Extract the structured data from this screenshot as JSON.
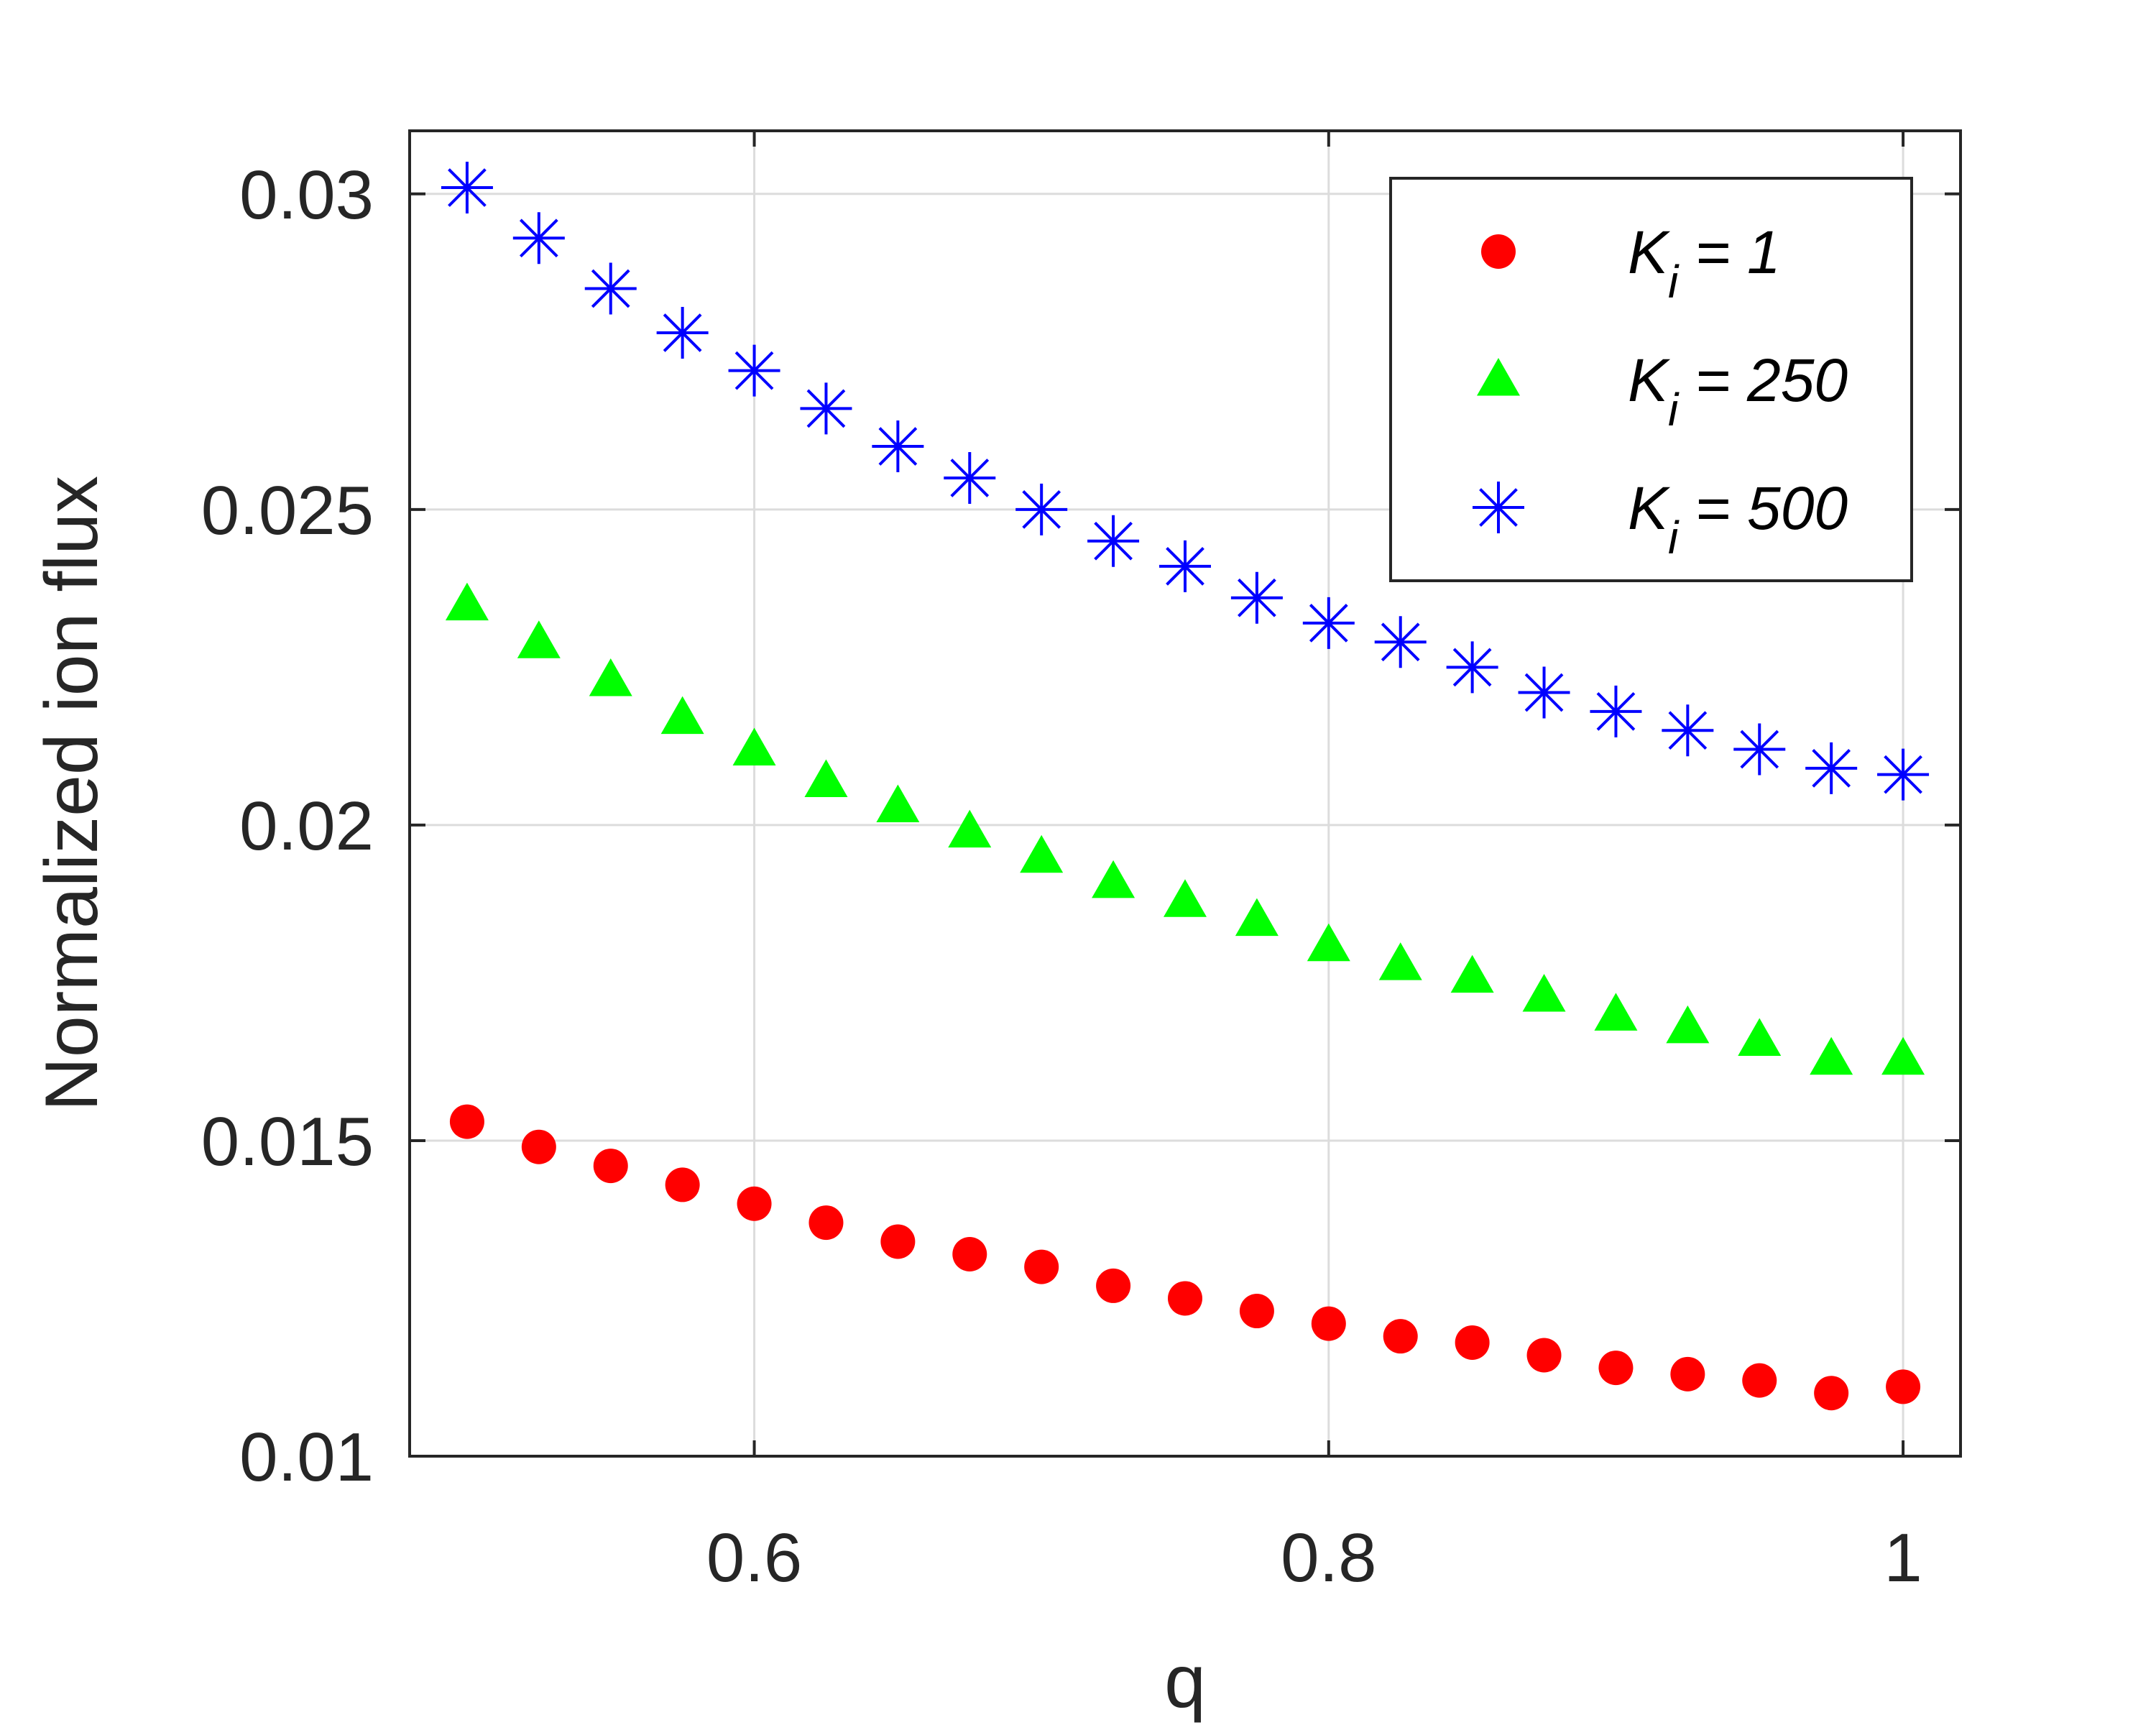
{
  "chart_data": {
    "type": "scatter",
    "xlabel": "q",
    "ylabel": "Normalized ion flux",
    "xlim": [
      0.5,
      1.0
    ],
    "ylim": [
      0.01,
      0.031
    ],
    "xticks": [
      0.6,
      0.8,
      1.0
    ],
    "xtick_labels": [
      "0.6",
      "0.8",
      "1"
    ],
    "yticks": [
      0.01,
      0.015,
      0.02,
      0.025,
      0.03
    ],
    "ytick_labels": [
      "0.01",
      "0.015",
      "0.02",
      "0.025",
      "0.03"
    ],
    "grid": true,
    "legend_position": "top-right",
    "x": [
      0.5,
      0.525,
      0.55,
      0.575,
      0.6,
      0.625,
      0.65,
      0.675,
      0.7,
      0.725,
      0.75,
      0.775,
      0.8,
      0.825,
      0.85,
      0.875,
      0.9,
      0.925,
      0.95,
      0.975,
      1.0
    ],
    "series": [
      {
        "name": "K_i = 1",
        "legend_main": "K",
        "legend_sub": "i",
        "legend_rest": " = 1",
        "marker": "circle",
        "color": "#ff0000",
        "values": [
          0.0153,
          0.0149,
          0.0146,
          0.0143,
          0.014,
          0.0137,
          0.0134,
          0.0132,
          0.013,
          0.0127,
          0.0125,
          0.0123,
          0.0121,
          0.0119,
          0.0118,
          0.0116,
          0.0114,
          0.0113,
          0.0112,
          0.011,
          0.0111
        ]
      },
      {
        "name": "K_i = 250",
        "legend_main": "K",
        "legend_sub": "i",
        "legend_rest": " = 250",
        "marker": "triangle",
        "color": "#00ff00",
        "values": [
          0.0235,
          0.0229,
          0.0223,
          0.0217,
          0.0212,
          0.0207,
          0.0203,
          0.0199,
          0.0195,
          0.0191,
          0.0188,
          0.0185,
          0.0181,
          0.0178,
          0.0176,
          0.0173,
          0.017,
          0.0168,
          0.0166,
          0.0163,
          0.0163
        ]
      },
      {
        "name": "K_i = 500",
        "legend_main": "K",
        "legend_sub": "i",
        "legend_rest": " = 500",
        "marker": "asterisk",
        "color": "#0000ff",
        "values": [
          0.0301,
          0.0293,
          0.0285,
          0.0278,
          0.0272,
          0.0266,
          0.026,
          0.0255,
          0.025,
          0.0245,
          0.0241,
          0.0236,
          0.0232,
          0.0229,
          0.0225,
          0.0221,
          0.0218,
          0.0215,
          0.0212,
          0.0209,
          0.0208
        ]
      }
    ]
  }
}
